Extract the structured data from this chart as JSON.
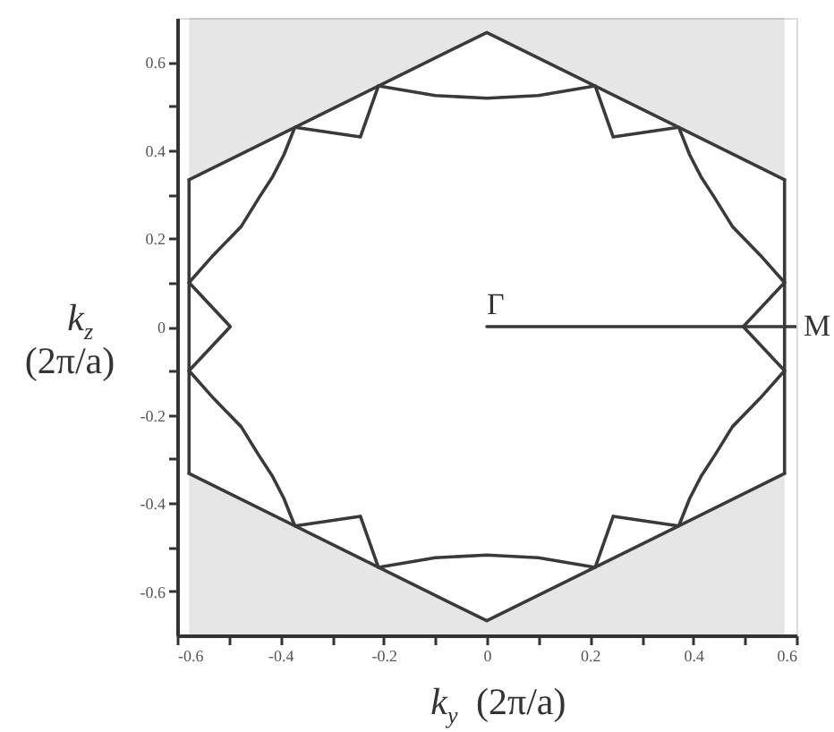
{
  "chart_data": {
    "type": "line",
    "xlabel": "k$_{y}$ (2π/a)",
    "ylabel": "k$_{z}$ (2π/a)",
    "xlim": [
      -0.6,
      0.6
    ],
    "ylim": [
      -0.7,
      0.7
    ],
    "xticks": [
      -0.6,
      {
        "value": -0.5,
        "label": null
      },
      -0.4,
      {
        "value": -0.3,
        "label": null
      },
      -0.2,
      {
        "value": -0.1,
        "label": null
      },
      0,
      {
        "value": 0.1,
        "label": null
      },
      0.2,
      {
        "value": 0.3,
        "label": null
      },
      0.4,
      {
        "value": 0.5,
        "label": null
      },
      0.6
    ],
    "yticks": [
      -0.6,
      {
        "value": -0.5,
        "label": null
      },
      -0.4,
      {
        "value": -0.3,
        "label": null
      },
      -0.2,
      {
        "value": -0.1,
        "label": null
      },
      0,
      {
        "value": 0.1,
        "label": null
      },
      0.2,
      {
        "value": 0.3,
        "label": null
      },
      0.4,
      {
        "value": 0.5,
        "label": null
      },
      0.6
    ],
    "grid": false,
    "annotations": [
      {
        "text": "Γ",
        "x": 0,
        "y": 0
      },
      {
        "text": "M",
        "x": 0.6,
        "y": 0
      }
    ],
    "series": [
      {
        "color": "#3a3a3a",
        "x": [
          -0.577,
          0,
          0.577
        ],
        "values": [
          0.333,
          0.667,
          0.333
        ],
        "lower": [
          0.333,
          0.667,
          0.333
        ],
        "upper": [
          0.7,
          0.7,
          0.7
        ]
      },
      {
        "color": "#3a3a3a",
        "x": [
          -0.577,
          0,
          0.577
        ],
        "values": [
          -0.333,
          -0.667,
          -0.333
        ],
        "lower": [
          -0.7,
          -0.7,
          -0.7
        ],
        "upper": [
          -0.333,
          -0.667,
          -0.333
        ]
      },
      {
        "color": "#3a3a3a",
        "x": [
          -0.577,
          -0.577
        ],
        "values": [
          -0.333,
          0.333
        ]
      },
      {
        "color": "#3a3a3a",
        "x": [
          0.577,
          0.577
        ],
        "values": [
          -0.333,
          0.333
        ]
      },
      {
        "color": "#3a3a3a",
        "x": [
          -0.577,
          -0.53,
          -0.476,
          -0.44,
          -0.415,
          -0.393,
          -0.372,
          -0.245,
          -0.21,
          -0.1,
          0,
          0.1,
          0.21,
          0.245,
          0.372,
          0.393,
          0.415,
          0.44,
          0.476,
          0.53,
          0.577
        ],
        "values": [
          0.1,
          0.162,
          0.227,
          0.295,
          0.34,
          0.39,
          0.452,
          0.43,
          0.546,
          0.524,
          0.518,
          0.524,
          0.546,
          0.43,
          0.452,
          0.39,
          0.34,
          0.295,
          0.227,
          0.162,
          0.1
        ]
      },
      {
        "color": "#3a3a3a",
        "x": [
          -0.577,
          -0.53,
          -0.476,
          -0.44,
          -0.415,
          -0.393,
          -0.372,
          -0.245,
          -0.21,
          -0.1,
          0,
          0.1,
          0.21,
          0.245,
          0.372,
          0.393,
          0.415,
          0.44,
          0.476,
          0.53,
          0.577
        ],
        "values": [
          -0.1,
          -0.162,
          -0.227,
          -0.295,
          -0.34,
          -0.39,
          -0.452,
          -0.43,
          -0.546,
          -0.524,
          -0.518,
          -0.524,
          -0.546,
          -0.43,
          -0.452,
          -0.39,
          -0.34,
          -0.295,
          -0.227,
          -0.162,
          -0.1
        ]
      },
      {
        "color": "#3a3a3a",
        "x": [
          -0.577,
          -0.497,
          -0.577
        ],
        "values": [
          0.1,
          0,
          -0.1
        ]
      },
      {
        "color": "#3a3a3a",
        "x": [
          0.577,
          0.497,
          0.577
        ],
        "values": [
          0.1,
          0,
          -0.1
        ]
      },
      {
        "color": "#3a3a3a",
        "x": [
          0,
          0.6
        ],
        "values": [
          0,
          0
        ]
      }
    ]
  }
}
